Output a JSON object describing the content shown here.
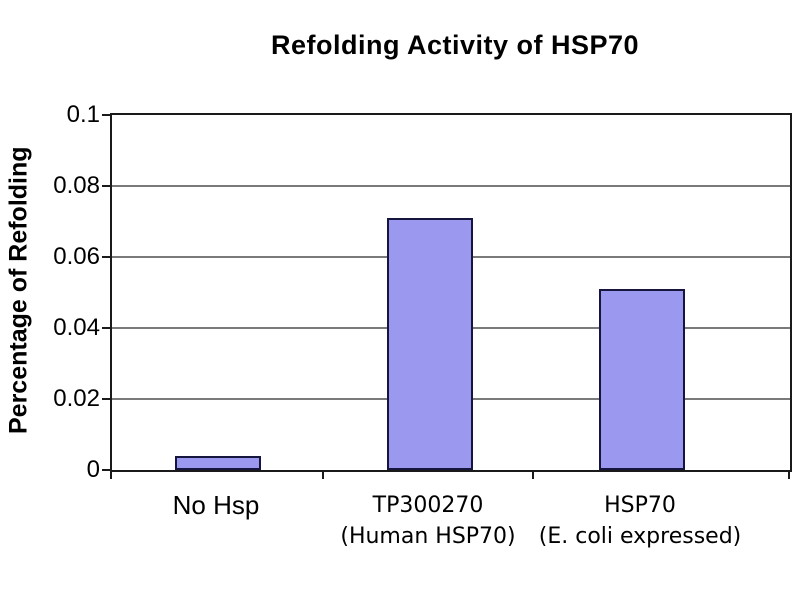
{
  "chart_data": {
    "type": "bar",
    "title": "Refolding Activity of HSP70",
    "ylabel": "Percentage of Refolding",
    "xlabel": "",
    "categories": [
      [
        "No Hsp"
      ],
      [
        "TP300270",
        "(Human HSP70)"
      ],
      [
        "HSP70",
        "(E. coli expressed)"
      ]
    ],
    "values": [
      0.004,
      0.071,
      0.051
    ],
    "ylim": [
      0,
      0.1
    ],
    "yticks": [
      0,
      0.02,
      0.04,
      0.06,
      0.08,
      0.1
    ],
    "ytick_labels": [
      "0",
      "0.02",
      "0.04",
      "0.06",
      "0.08",
      "0.1"
    ],
    "grid": true,
    "legend": false,
    "colors": {
      "bar_fill": "#9b99ef",
      "bar_border": "#15153d",
      "gridline": "#7a7a7a",
      "axis": "#1a1a1a",
      "background": "#ffffff",
      "text": "#000000"
    }
  }
}
